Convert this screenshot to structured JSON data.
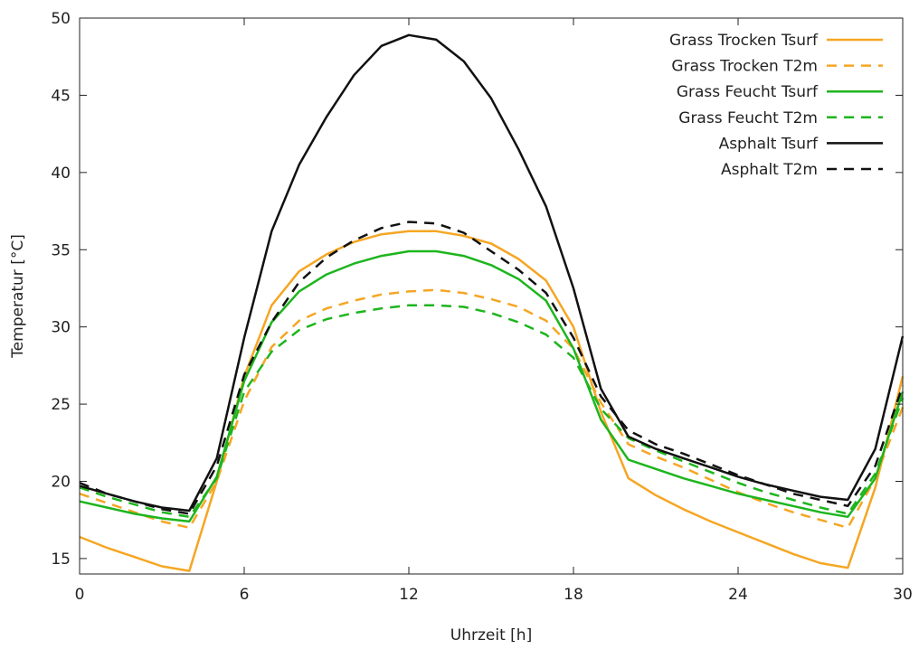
{
  "chart_data": {
    "type": "line",
    "title": "",
    "xlabel": "Uhrzeit [h]",
    "ylabel": "Temperatur [°C]",
    "xlim": [
      0,
      30
    ],
    "ylim": [
      14,
      50
    ],
    "xticks": [
      0,
      6,
      12,
      18,
      24,
      30
    ],
    "yticks": [
      15,
      20,
      25,
      30,
      35,
      40,
      45,
      50
    ],
    "grid": false,
    "legend_position": "top-right",
    "x": [
      0,
      1,
      2,
      3,
      4,
      5,
      6,
      7,
      8,
      9,
      10,
      11,
      12,
      13,
      14,
      15,
      16,
      17,
      18,
      19,
      20,
      21,
      22,
      23,
      24,
      25,
      26,
      27,
      28,
      29,
      30
    ],
    "series": [
      {
        "name": "Grass Trocken Tsurf",
        "color": "#f5a623",
        "dash": "solid",
        "values": [
          16.4,
          15.7,
          15.1,
          14.5,
          14.2,
          20.0,
          26.8,
          31.4,
          33.6,
          34.7,
          35.5,
          36.0,
          36.2,
          36.2,
          35.9,
          35.4,
          34.4,
          33.0,
          30.0,
          24.5,
          20.2,
          19.1,
          18.2,
          17.4,
          16.7,
          16.0,
          15.3,
          14.7,
          14.4,
          19.6,
          26.8
        ]
      },
      {
        "name": "Grass Trocken T2m",
        "color": "#f5a623",
        "dash": "dashed",
        "values": [
          19.2,
          18.6,
          18.0,
          17.4,
          17.0,
          20.0,
          25.2,
          28.7,
          30.4,
          31.2,
          31.7,
          32.1,
          32.3,
          32.4,
          32.2,
          31.8,
          31.3,
          30.4,
          28.6,
          25.1,
          22.4,
          21.6,
          20.9,
          20.1,
          19.3,
          18.6,
          18.0,
          17.5,
          17.0,
          20.2,
          24.8
        ]
      },
      {
        "name": "Grass Feucht Tsurf",
        "color": "#1db51d",
        "dash": "solid",
        "values": [
          18.7,
          18.3,
          17.9,
          17.6,
          17.4,
          20.3,
          26.5,
          30.3,
          32.3,
          33.4,
          34.1,
          34.6,
          34.9,
          34.9,
          34.6,
          34.0,
          33.1,
          31.7,
          28.6,
          24.0,
          21.4,
          20.8,
          20.2,
          19.7,
          19.2,
          18.8,
          18.4,
          18.0,
          17.7,
          20.2,
          25.8
        ]
      },
      {
        "name": "Grass Feucht T2m",
        "color": "#1db51d",
        "dash": "dashed",
        "values": [
          19.6,
          19.0,
          18.5,
          18.0,
          17.7,
          20.2,
          25.8,
          28.4,
          29.8,
          30.5,
          30.9,
          31.2,
          31.4,
          31.4,
          31.3,
          30.9,
          30.3,
          29.5,
          28.0,
          24.7,
          22.8,
          22.0,
          21.3,
          20.6,
          19.9,
          19.3,
          18.8,
          18.3,
          17.9,
          20.5,
          25.4
        ]
      },
      {
        "name": "Asphalt Tsurf",
        "color": "#111111",
        "dash": "solid",
        "values": [
          19.7,
          19.2,
          18.7,
          18.3,
          18.1,
          21.5,
          29.3,
          36.2,
          40.5,
          43.6,
          46.3,
          48.2,
          48.9,
          48.6,
          47.2,
          44.8,
          41.5,
          37.8,
          32.5,
          26.0,
          22.9,
          22.1,
          21.5,
          20.9,
          20.3,
          19.8,
          19.4,
          19.0,
          18.8,
          22.1,
          29.4
        ]
      },
      {
        "name": "Asphalt T2m",
        "color": "#111111",
        "dash": "dashed",
        "values": [
          19.9,
          19.2,
          18.7,
          18.2,
          17.9,
          21.0,
          26.9,
          30.3,
          32.9,
          34.5,
          35.6,
          36.4,
          36.8,
          36.7,
          36.1,
          34.9,
          33.7,
          32.2,
          29.3,
          25.5,
          23.3,
          22.4,
          21.8,
          21.1,
          20.4,
          19.8,
          19.2,
          18.8,
          18.4,
          21.0,
          26.2
        ]
      }
    ]
  }
}
